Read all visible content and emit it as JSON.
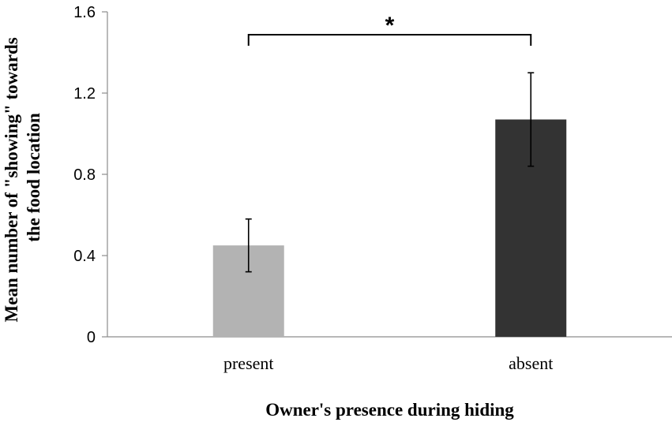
{
  "chart_data": {
    "type": "bar",
    "categories": [
      "present",
      "absent"
    ],
    "values": [
      0.45,
      1.07
    ],
    "error": [
      0.13,
      0.23
    ],
    "bar_colors": [
      "#b3b3b3",
      "#333333"
    ],
    "ylim": [
      0,
      1.6
    ],
    "yticks": [
      0,
      0.4,
      0.8,
      1.2,
      1.6
    ],
    "ytick_labels": [
      "0",
      "0.4",
      "0.8",
      "1.2",
      "1.6"
    ],
    "ylabel_lines": [
      "Mean number of \"showing\" towards",
      "the food location"
    ],
    "xlabel": "Owner's presence during hiding",
    "significance": {
      "between": [
        0,
        1
      ],
      "label": "*"
    },
    "grid": false
  }
}
